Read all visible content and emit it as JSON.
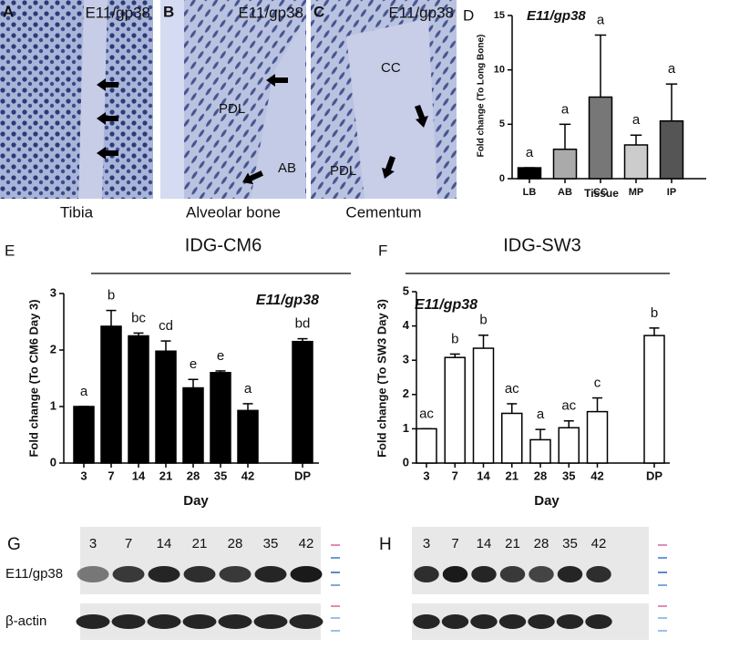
{
  "histology": [
    {
      "letter": "A",
      "stain": "E11/gp38",
      "caption": "Tibia",
      "labels": []
    },
    {
      "letter": "B",
      "stain": "E11/gp38",
      "caption": "Alveolar bone",
      "labels": [
        "PDL",
        "AB"
      ]
    },
    {
      "letter": "C",
      "stain": "E11/gp38",
      "caption": "Cementum",
      "labels": [
        "CC",
        "PDL"
      ]
    }
  ],
  "chart_data": [
    {
      "type": "bar",
      "panel": "D",
      "title": "E11/gp38",
      "ylabel": "Fold change (To Long Bone)",
      "xlabel": "Tissue",
      "categories": [
        "LB",
        "AB",
        "CC",
        "MP",
        "IP"
      ],
      "values": [
        1,
        2.7,
        7.5,
        3.1,
        5.3
      ],
      "errors": [
        0,
        2.3,
        5.7,
        0.9,
        3.4
      ],
      "letters": [
        "a",
        "a",
        "a",
        "a",
        "a"
      ],
      "colors": [
        "#000000",
        "#aaaaaa",
        "#777777",
        "#cccccc",
        "#555555"
      ],
      "ylim": [
        0,
        15
      ],
      "yticks": [
        0,
        5,
        10,
        15
      ]
    },
    {
      "type": "bar",
      "panel": "E",
      "title": "IDG-CM6",
      "subtitle": "E11/gp38",
      "ylabel": "Fold change (To CM6 Day 3)",
      "xlabel": "Day",
      "categories": [
        "3",
        "7",
        "14",
        "21",
        "28",
        "35",
        "42",
        null,
        "DP"
      ],
      "values": [
        1,
        2.42,
        2.25,
        1.98,
        1.33,
        1.6,
        0.93,
        null,
        2.15
      ],
      "errors": [
        0,
        0.28,
        0.05,
        0.18,
        0.15,
        0.03,
        0.12,
        null,
        0.05
      ],
      "letters": [
        "a",
        "b",
        "bc",
        "cd",
        "e",
        "e",
        "a",
        null,
        "bd"
      ],
      "color": "#000000",
      "ylim": [
        0,
        3
      ],
      "yticks": [
        0,
        1,
        2,
        3
      ]
    },
    {
      "type": "bar",
      "panel": "F",
      "title": "IDG-SW3",
      "subtitle": "E11/gp38",
      "ylabel": "Fold change (To SW3 Day 3)",
      "xlabel": "Day",
      "categories": [
        "3",
        "7",
        "14",
        "21",
        "28",
        "35",
        "42",
        null,
        "DP"
      ],
      "values": [
        1,
        3.08,
        3.35,
        1.45,
        0.68,
        1.03,
        1.5,
        null,
        3.72
      ],
      "errors": [
        0,
        0.1,
        0.38,
        0.28,
        0.3,
        0.2,
        0.4,
        null,
        0.22
      ],
      "letters": [
        "ac",
        "b",
        "b",
        "ac",
        "a",
        "ac",
        "c",
        null,
        "b"
      ],
      "color": "#ffffff",
      "ylim": [
        0,
        5
      ],
      "yticks": [
        0,
        1,
        2,
        3,
        4,
        5
      ]
    }
  ],
  "blots": [
    {
      "letter": "G",
      "lanes": [
        "3",
        "7",
        "14",
        "21",
        "28",
        "35",
        "42"
      ],
      "rows": [
        "E11/gp38",
        "β-actin"
      ]
    },
    {
      "letter": "H",
      "lanes": [
        "3",
        "7",
        "14",
        "21",
        "28",
        "35",
        "42"
      ],
      "rows": []
    }
  ]
}
